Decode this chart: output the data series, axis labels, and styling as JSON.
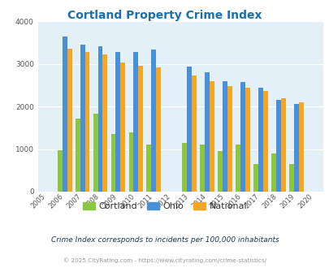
{
  "title": "Cortland Property Crime Index",
  "title_color": "#1a6faf",
  "years": [
    2005,
    2006,
    2007,
    2008,
    2009,
    2010,
    2011,
    2012,
    2013,
    2014,
    2015,
    2016,
    2017,
    2018,
    2019,
    2020
  ],
  "data_years": [
    2006,
    2007,
    2008,
    2009,
    2010,
    2011,
    2013,
    2014,
    2015,
    2016,
    2017,
    2018,
    2019
  ],
  "cortland": [
    970,
    1720,
    1840,
    1360,
    1390,
    1100,
    1150,
    1110,
    950,
    1110,
    650,
    890,
    650
  ],
  "ohio": [
    3650,
    3460,
    3420,
    3280,
    3280,
    3330,
    2940,
    2800,
    2600,
    2580,
    2440,
    2160,
    2060
  ],
  "national": [
    3350,
    3280,
    3220,
    3040,
    2960,
    2920,
    2720,
    2600,
    2490,
    2450,
    2370,
    2190,
    2100
  ],
  "cortland_color": "#8dc63f",
  "ohio_color": "#4a90d9",
  "national_color": "#f5a623",
  "plot_bg": "#e4f0f8",
  "ylim": [
    0,
    4000
  ],
  "subtitle": "Crime Index corresponds to incidents per 100,000 inhabitants",
  "subtitle_color": "#1a3a5c",
  "footer": "© 2025 CityRating.com - https://www.cityrating.com/crime-statistics/",
  "footer_color": "#999999",
  "bar_width": 0.27,
  "legend_labels": [
    "Cortland",
    "Ohio",
    "National"
  ]
}
